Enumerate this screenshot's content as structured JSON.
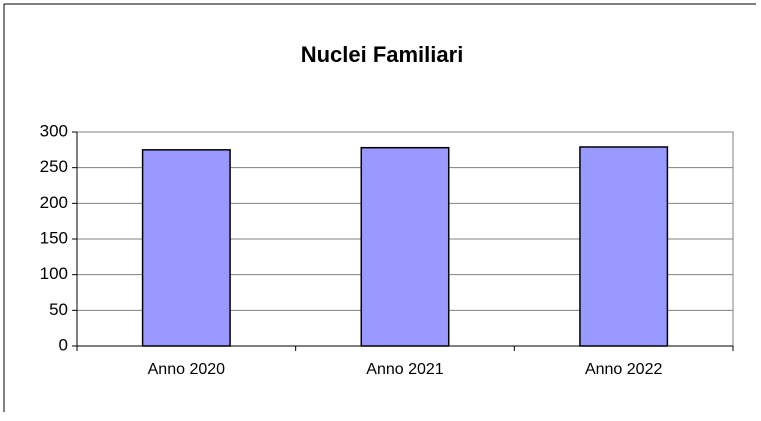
{
  "chart_data": {
    "type": "bar",
    "title": "Nuclei Familiari",
    "categories": [
      "Anno 2020",
      "Anno 2021",
      "Anno 2022"
    ],
    "values": [
      275,
      278,
      279
    ],
    "color": "#9999ff",
    "ylim": [
      0,
      300
    ],
    "yticks": [
      0,
      50,
      100,
      150,
      200,
      250,
      300
    ],
    "grid": true
  }
}
